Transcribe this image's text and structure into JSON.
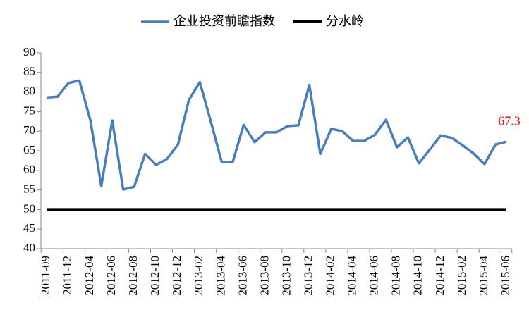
{
  "chart_data": {
    "type": "line",
    "categories": [
      "2011-09",
      null,
      "2011-12",
      null,
      "2012-04",
      null,
      "2012-06",
      null,
      "2012-08",
      null,
      "2012-10",
      null,
      "2012-12",
      null,
      "2013-02",
      null,
      "2013-04",
      null,
      "2013-06",
      null,
      "2013-08",
      null,
      "2013-10",
      null,
      "2013-12",
      null,
      "2014-02",
      null,
      "2014-04",
      null,
      "2014-06",
      null,
      "2014-08",
      null,
      "2014-10",
      null,
      "2014-12",
      null,
      "2015-02",
      null,
      "2015-04",
      null,
      "2015-06"
    ],
    "series": [
      {
        "name": "企业投资前瞻指数",
        "color": "#4a7ebb",
        "values": [
          78.6,
          78.8,
          82.3,
          82.9,
          72.8,
          56.0,
          72.7,
          55.1,
          55.8,
          64.2,
          61.4,
          62.9,
          66.6,
          78.0,
          82.5,
          72.5,
          62.1,
          62.1,
          71.6,
          67.2,
          69.7,
          69.7,
          71.3,
          71.5,
          81.8,
          64.2,
          70.6,
          70.0,
          67.5,
          67.5,
          69.1,
          72.9,
          65.9,
          68.4,
          61.8,
          65.3,
          68.9,
          68.3,
          66.4,
          64.3,
          61.6,
          66.6,
          67.3
        ]
      },
      {
        "name": "分水岭",
        "color": "#000000",
        "values": [
          50,
          50,
          50,
          50,
          50,
          50,
          50,
          50,
          50,
          50,
          50,
          50,
          50,
          50,
          50,
          50,
          50,
          50,
          50,
          50,
          50,
          50,
          50,
          50,
          50,
          50,
          50,
          50,
          50,
          50,
          50,
          50,
          50,
          50,
          50,
          50,
          50,
          50,
          50,
          50,
          50,
          50,
          50
        ]
      }
    ],
    "ylim": [
      40,
      90
    ],
    "yticks": [
      40,
      45,
      50,
      55,
      60,
      65,
      70,
      75,
      80,
      85,
      90
    ],
    "legend": "top",
    "label_color": "#ff0000"
  }
}
